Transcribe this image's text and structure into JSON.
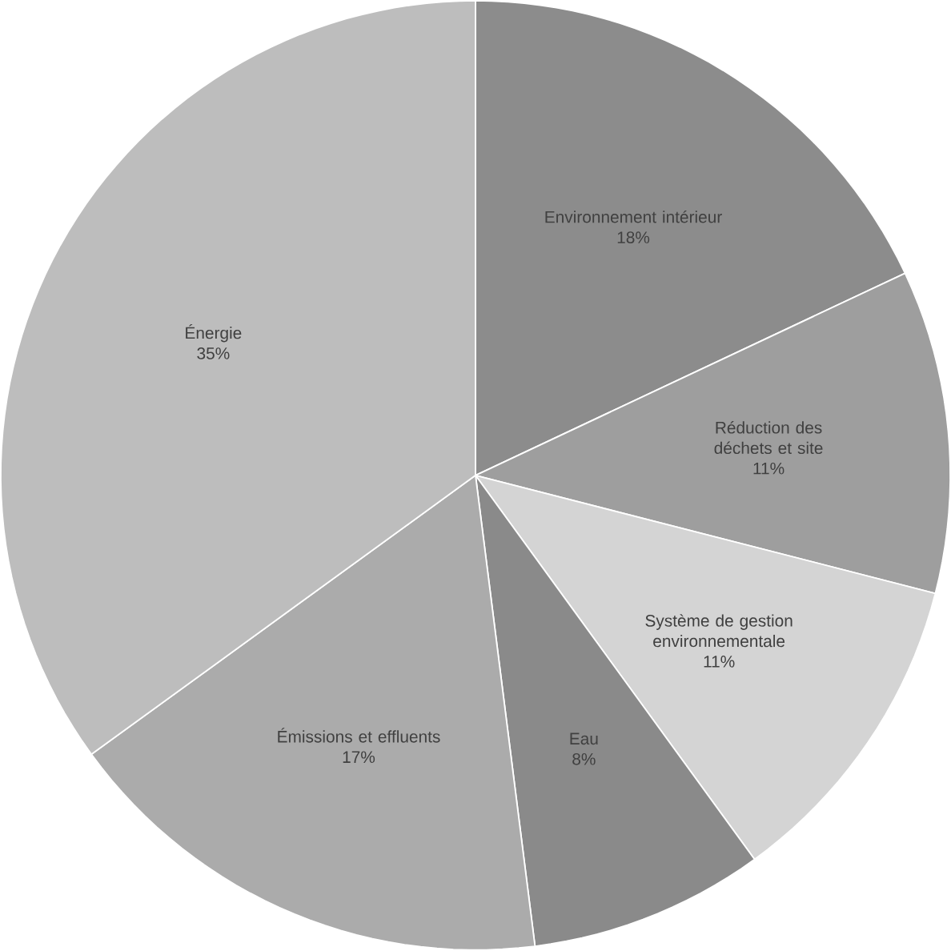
{
  "chart_data": {
    "type": "pie",
    "categories": [
      "Environnement intérieur",
      "Réduction des déchets et site",
      "Système de gestion environnementale",
      "Eau",
      "Émissions et effluents",
      "Énergie"
    ],
    "values": [
      18,
      11,
      11,
      8,
      17,
      35
    ],
    "value_labels": [
      "18%",
      "11%",
      "11%",
      "8%",
      "17%",
      "35%"
    ],
    "colors": [
      "#8c8c8c",
      "#9e9e9e",
      "#d4d4d4",
      "#8a8a8a",
      "#ababab",
      "#bdbdbd"
    ]
  }
}
